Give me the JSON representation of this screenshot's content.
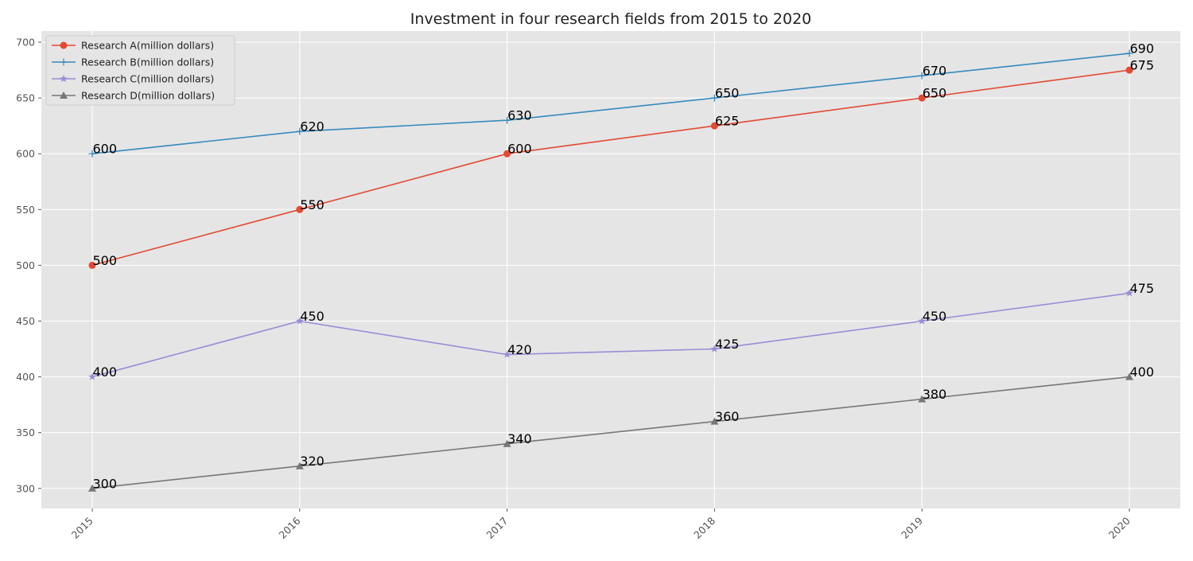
{
  "chart_data": {
    "type": "line",
    "title": "Investment in four research fields from 2015 to 2020",
    "xlabel": "",
    "ylabel": "",
    "x": [
      "2015",
      "2016",
      "2017",
      "2018",
      "2019",
      "2020"
    ],
    "ylim": [
      282,
      710
    ],
    "y_ticks": [
      300,
      350,
      400,
      450,
      500,
      550,
      600,
      650,
      700
    ],
    "grid": true,
    "legend_position": "top-left",
    "background": "#e5e5e5",
    "series": [
      {
        "name": "Research A(million dollars)",
        "values": [
          500,
          550,
          600,
          625,
          650,
          675
        ],
        "color": "#e24a33",
        "marker": "circle"
      },
      {
        "name": "Research B(million dollars)",
        "values": [
          600,
          620,
          630,
          650,
          670,
          690
        ],
        "color": "#348abd",
        "marker": "plus"
      },
      {
        "name": "Research C(million dollars)",
        "values": [
          400,
          450,
          420,
          425,
          450,
          475
        ],
        "color": "#988ed5",
        "marker": "star"
      },
      {
        "name": "Research D(million dollars)",
        "values": [
          300,
          320,
          340,
          360,
          380,
          400
        ],
        "color": "#777777",
        "marker": "triangle"
      }
    ]
  }
}
